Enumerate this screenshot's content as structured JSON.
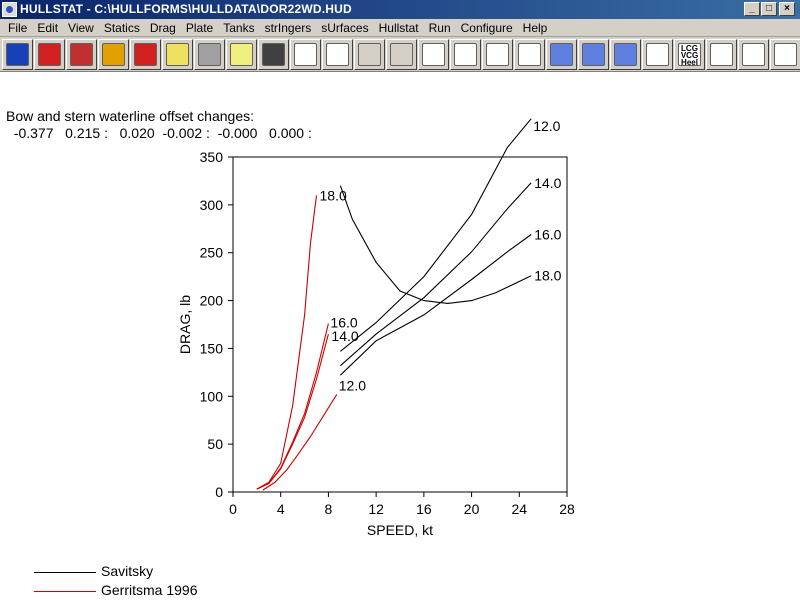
{
  "window": {
    "title": "HULLSTAT - C:\\HULLFORMS\\HULLDATA\\DOR22WD.HUD",
    "buttons": [
      "_",
      "□",
      "×"
    ]
  },
  "menu": [
    "File",
    "Edit",
    "View",
    "Statics",
    "Drag",
    "Plate",
    "Tanks",
    "strIngers",
    "sUrfaces",
    "Hullstat",
    "Run",
    "Configure",
    "Help"
  ],
  "toolbar": [
    {
      "name": "hull-3d-icon",
      "color": "#1840b8"
    },
    {
      "name": "color-hull-icon",
      "color": "#d02020"
    },
    {
      "name": "plate-view-icon",
      "color": "#c03030"
    },
    {
      "name": "sections-icon",
      "color": "#e0a000"
    },
    {
      "name": "sections-red-icon",
      "color": "#d02020"
    },
    {
      "name": "notepad-icon",
      "color": "#f0e060"
    },
    {
      "name": "print-setup-icon",
      "color": "#a0a0a0"
    },
    {
      "name": "report-icon",
      "color": "#f0f080"
    },
    {
      "name": "operator-icon",
      "color": "#404040"
    },
    {
      "name": "graph-curve-icon",
      "color": "#ffffff"
    },
    {
      "name": "graph-edit-icon",
      "color": "#ffffff"
    },
    {
      "name": "zoom-in-icon",
      "color": "#d4d0c8"
    },
    {
      "name": "zoom-out-icon",
      "color": "#d4d0c8"
    },
    {
      "name": "body-plan-icon",
      "color": "#ffffff"
    },
    {
      "name": "waterline-icon",
      "color": "#ffffff"
    },
    {
      "name": "profile-icon",
      "color": "#ffffff"
    },
    {
      "name": "bow-view-icon",
      "color": "#ffffff"
    },
    {
      "name": "hull-shade-1-icon",
      "color": "#6080e0"
    },
    {
      "name": "hull-shade-2-icon",
      "color": "#6080e0"
    },
    {
      "name": "hull-shade-3-icon",
      "color": "#6080e0"
    },
    {
      "name": "area-curve-icon",
      "color": "#ffffff"
    },
    {
      "name": "lcg-vcg-heel-icon",
      "color": "#ffffff",
      "text": "LCG VCG Heel"
    },
    {
      "name": "stability-curve-icon",
      "color": "#ffffff"
    },
    {
      "name": "data-table-icon",
      "color": "#ffffff"
    },
    {
      "name": "offsets-table-icon",
      "color": "#ffffff"
    }
  ],
  "header": {
    "line1": "Bow and stern waterline offset changes:",
    "line2": "  -0.377   0.215 :   0.020  -0.002 :  -0.000   0.000 :"
  },
  "chart_data": {
    "type": "line",
    "xlabel": "SPEED, kt",
    "ylabel": "DRAG, lb",
    "xlim": [
      0,
      28
    ],
    "ylim": [
      0,
      350
    ],
    "xticks": [
      0,
      4,
      8,
      12,
      16,
      20,
      24,
      28
    ],
    "yticks": [
      0,
      50,
      100,
      150,
      200,
      250,
      300,
      350
    ],
    "grid": false,
    "series": [
      {
        "name": "Savitsky",
        "color": "#000000",
        "label": "12.0",
        "x": [
          9,
          12,
          16,
          20,
          23,
          25
        ],
        "y": [
          147,
          177,
          225,
          290,
          360,
          390
        ]
      },
      {
        "name": "Savitsky",
        "color": "#000000",
        "label": "14.0",
        "x": [
          9,
          12,
          16,
          20,
          23,
          25
        ],
        "y": [
          132,
          165,
          203,
          251,
          296,
          323
        ]
      },
      {
        "name": "Savitsky",
        "color": "#000000",
        "label": "16.0",
        "x": [
          9,
          12,
          16,
          20,
          23,
          25
        ],
        "y": [
          122,
          158,
          185,
          222,
          251,
          269
        ]
      },
      {
        "name": "Savitsky",
        "color": "#000000",
        "label": "18.0",
        "x": [
          9,
          10,
          12,
          14,
          16,
          18,
          20,
          22,
          25
        ],
        "y": [
          320,
          285,
          240,
          210,
          200,
          197,
          200,
          208,
          226
        ]
      },
      {
        "name": "Gerritsma 1996",
        "color": "#cc0000",
        "label": "18.0",
        "x": [
          2,
          3,
          4,
          5,
          6,
          6.5,
          7
        ],
        "y": [
          3,
          10,
          30,
          90,
          185,
          260,
          310
        ]
      },
      {
        "name": "Gerritsma 1996",
        "color": "#cc0000",
        "label": "16.0",
        "x": [
          2,
          3,
          4,
          5,
          6,
          7,
          8
        ],
        "y": [
          3,
          9,
          25,
          52,
          82,
          125,
          176
        ]
      },
      {
        "name": "Gerritsma 1996",
        "color": "#cc0000",
        "label": "14.0",
        "x": [
          2,
          3,
          4,
          5,
          6,
          7,
          8
        ],
        "y": [
          3,
          9,
          24,
          50,
          78,
          118,
          165
        ]
      },
      {
        "name": "Gerritsma 1996",
        "color": "#cc0000",
        "label": "12.0",
        "x": [
          2.5,
          3.5,
          4.5,
          5.5,
          6.5,
          7.5,
          8.7
        ],
        "y": [
          2,
          10,
          23,
          40,
          58,
          78,
          102
        ]
      }
    ],
    "legend": [
      {
        "label": "Savitsky",
        "color": "#000000"
      },
      {
        "label": "Gerritsma 1996",
        "color": "#cc0000"
      }
    ]
  }
}
